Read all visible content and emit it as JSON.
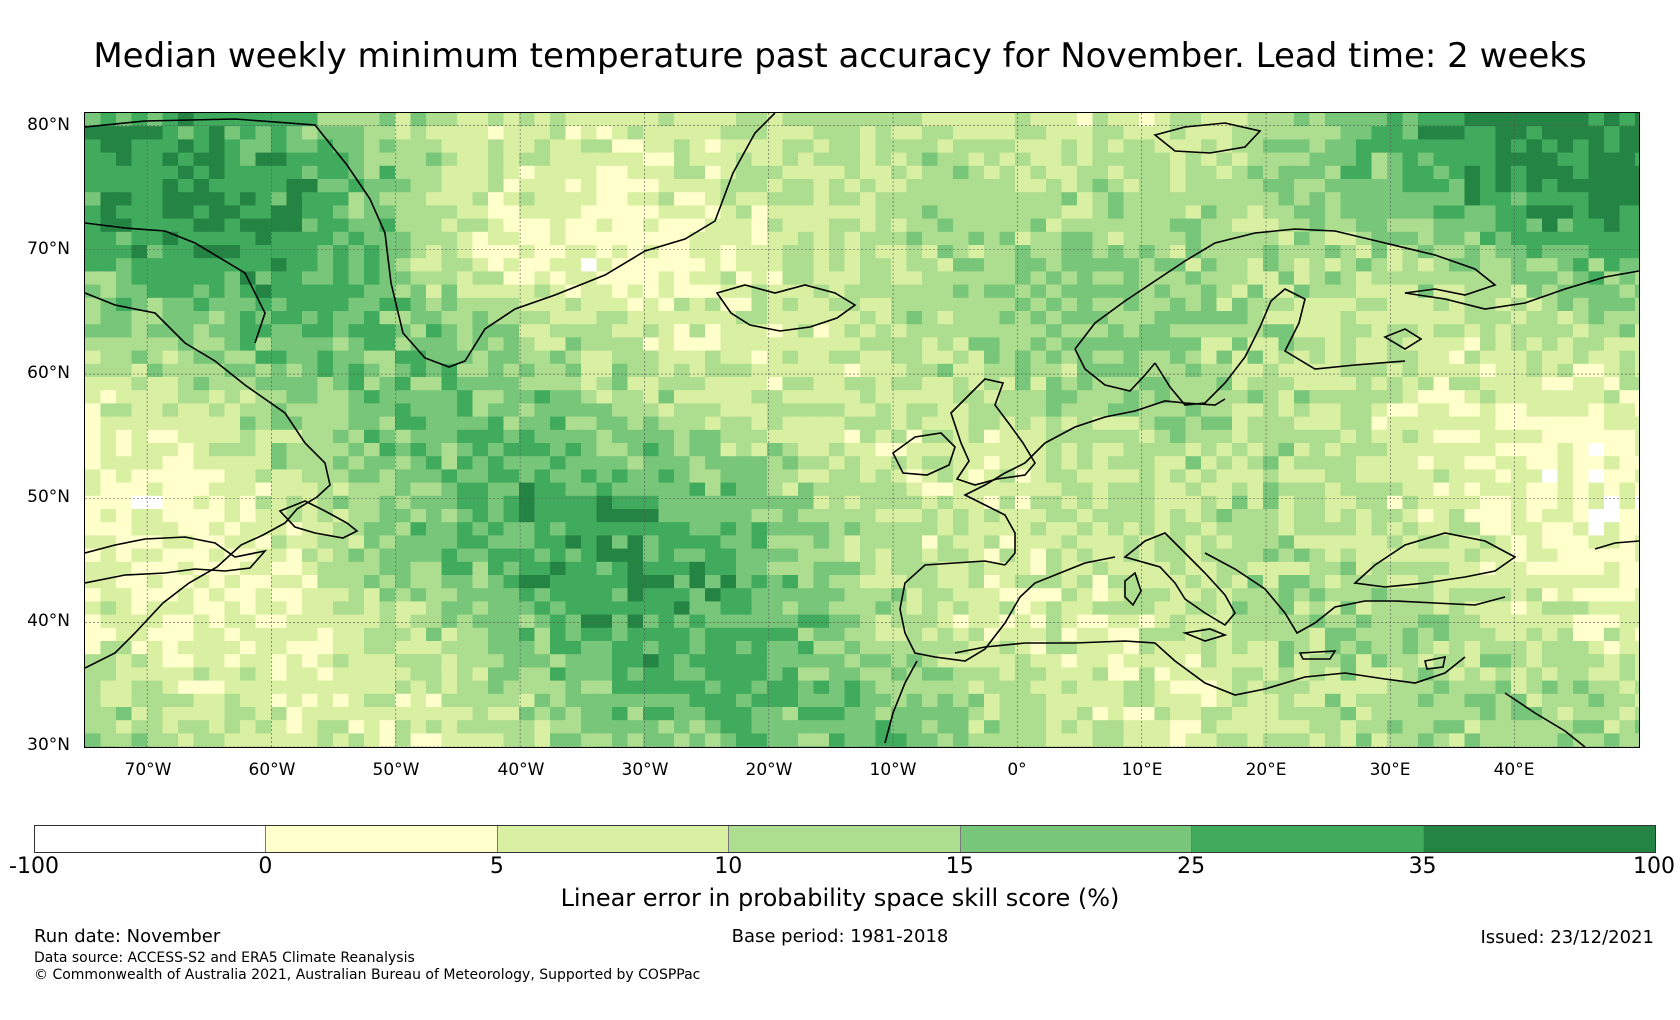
{
  "title": "Median weekly minimum temperature past accuracy for November. Lead time: 2 weeks",
  "map": {
    "lat_labels": [
      "80°N",
      "70°N",
      "60°N",
      "50°N",
      "40°N",
      "30°N"
    ],
    "lon_labels": [
      "70°W",
      "60°W",
      "50°W",
      "40°W",
      "30°W",
      "20°W",
      "10°W",
      "0°",
      "10°E",
      "20°E",
      "30°E",
      "40°E"
    ],
    "extent": {
      "lon_min": -75,
      "lon_max": 50,
      "lat_min": 30,
      "lat_max": 81
    },
    "gridlines": true
  },
  "colorbar": {
    "label": "Linear error in probability space skill score (%)",
    "ticks": [
      "-100",
      "0",
      "5",
      "10",
      "15",
      "25",
      "35",
      "100"
    ],
    "colors": [
      "#ffffff",
      "#ffffcc",
      "#d9f0a3",
      "#addd8e",
      "#78c679",
      "#41ab5d",
      "#238443"
    ]
  },
  "footer": {
    "run_date": "Run date: November",
    "base_period": "Base period: 1981-2018",
    "issued": "Issued: 23/12/2021",
    "data_source": "Data source: ACCESS-S2 and ERA5 Climate Reanalysis",
    "copyright": "© Commonwealth of Australia 2021, Australian Bureau of Meteorology, Supported by COSPPac"
  }
}
